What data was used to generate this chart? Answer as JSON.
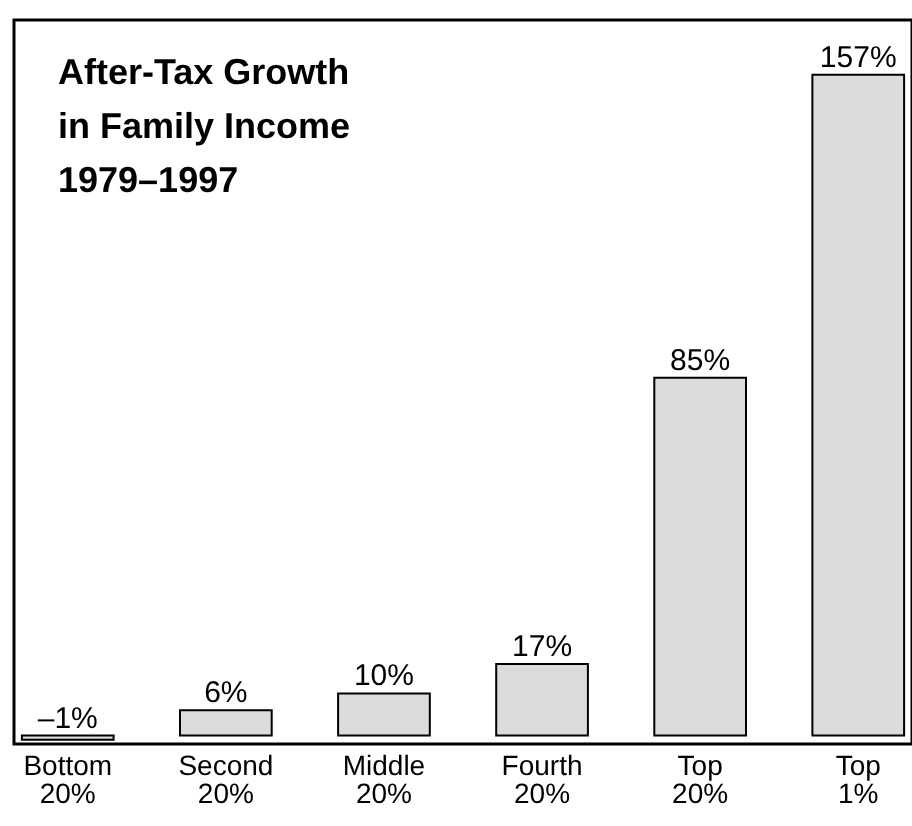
{
  "chart_data": {
    "type": "bar",
    "title": "After-Tax Growth\nin Family Income\n1979–1997",
    "categories": [
      "Bottom\n20%",
      "Second\n20%",
      "Middle\n20%",
      "Fourth\n20%",
      "Top\n20%",
      "Top\n1%"
    ],
    "values": [
      -1,
      6,
      10,
      17,
      85,
      157
    ],
    "value_labels": [
      "–1%",
      "6%",
      "10%",
      "17%",
      "85%",
      "157%"
    ],
    "color": "#dcdcdc",
    "ylim": [
      -2,
      170
    ],
    "grid": false,
    "tick_labels": "x"
  }
}
